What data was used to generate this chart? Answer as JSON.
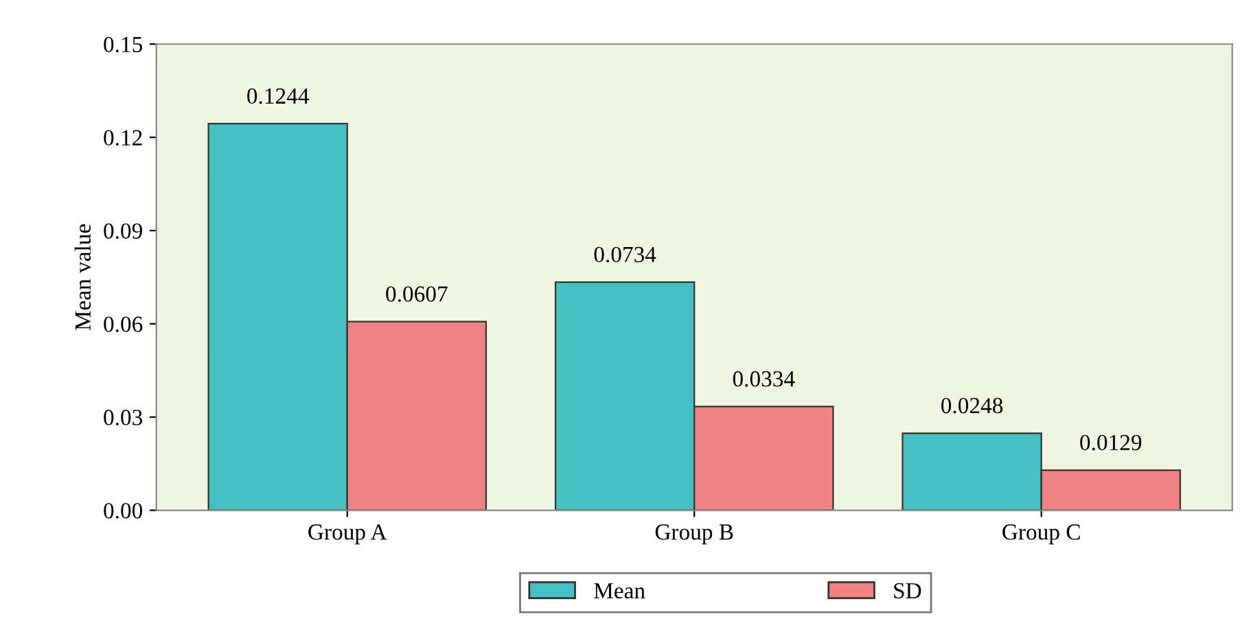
{
  "chart_data": {
    "type": "bar",
    "ylabel": "Mean value",
    "categories": [
      "Group A",
      "Group B",
      "Group C"
    ],
    "series": [
      {
        "name": "Mean",
        "color": "#45c1c4",
        "values": [
          0.1244,
          0.0734,
          0.0248
        ]
      },
      {
        "name": "SD",
        "color": "#f08283",
        "values": [
          0.0607,
          0.0334,
          0.0129
        ]
      }
    ],
    "ylim": [
      0,
      0.15
    ],
    "yticks": [
      {
        "value": 0,
        "label": "0.00"
      },
      0.03,
      0.06,
      0.09,
      0.12,
      0.15
    ],
    "data_labels": true,
    "legend": "bottom",
    "grid": false
  }
}
